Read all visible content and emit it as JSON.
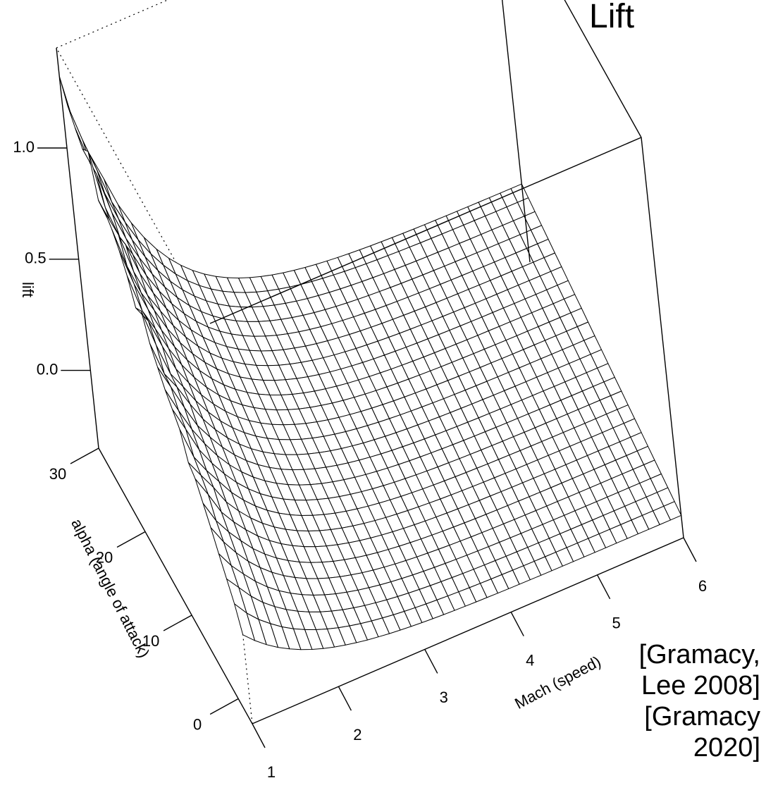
{
  "chart_data": {
    "type": "surface",
    "title": "Lift",
    "zlabel": "lift",
    "xlabel": "Mach (speed)",
    "ylabel": "alpha (angle of attack)",
    "x_ticks": [
      "1",
      "2",
      "3",
      "4",
      "5",
      "6"
    ],
    "y_ticks": [
      "0",
      "10",
      "20",
      "30"
    ],
    "z_ticks": [
      "0.0",
      "0.5",
      "1.0"
    ],
    "x_range": [
      1,
      6
    ],
    "y_range": [
      -3,
      30
    ],
    "z_range": [
      -0.35,
      1.45
    ],
    "surface_description": {
      "low_mach_lift_at_alpha_30": 1.3,
      "low_mach_lift_at_alpha_0": 0.05,
      "high_mach_lift_at_alpha_30": 0.0,
      "high_mach_lift_at_alpha_0": -0.25
    }
  },
  "citations": [
    "[Gramacy,",
    "Lee 2008]",
    "[Gramacy",
    "2020]"
  ]
}
